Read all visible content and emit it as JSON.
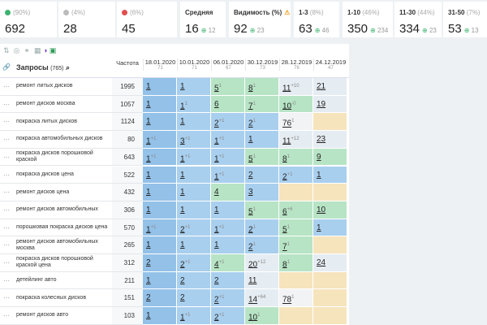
{
  "stats": [
    {
      "share": "(90%)",
      "value": 692
    },
    {
      "share": "(4%)",
      "value": 28
    },
    {
      "share": "(6%)",
      "value": 45
    }
  ],
  "metrics": [
    {
      "label": "Средняя",
      "value": 16,
      "delta": 12
    },
    {
      "label": "Видимость (%)",
      "value": 92,
      "delta": 23
    },
    {
      "label": "1-3",
      "share": "(8%)",
      "value": 63,
      "delta": 46
    },
    {
      "label": "1-10",
      "share": "(46%)",
      "value": 350,
      "delta": 234
    },
    {
      "label": "11-30",
      "share": "(44%)",
      "value": 334,
      "delta": 23
    },
    {
      "label": "31-50",
      "share": "(7%)",
      "value": 53,
      "delta": 13
    }
  ],
  "table": {
    "query_header": "Запросы",
    "query_count": "(765)",
    "freq_header": "Частота",
    "dates": [
      "18.01.2020",
      "10.01.2020",
      "06.01.2020",
      "30.12.2019",
      "28.12.2019",
      "24.12.2019"
    ],
    "date_counts": [
      71,
      71,
      67,
      73,
      76,
      47
    ],
    "rows": [
      {
        "query": "ремонт литых дисков",
        "freq": 1995,
        "positions": [
          1,
          1,
          5,
          8,
          11,
          21
        ],
        "changes": [
          null,
          null,
          "1",
          "1",
          "+10",
          null
        ]
      },
      {
        "query": "ремонт дисков москва",
        "freq": 1057,
        "positions": [
          1,
          1,
          6,
          7,
          10,
          19
        ],
        "changes": [
          null,
          "1",
          null,
          "1",
          "-0",
          null
        ]
      },
      {
        "query": "покраска литых дисков",
        "freq": 1124,
        "positions": [
          1,
          1,
          2,
          2,
          76,
          null
        ],
        "changes": [
          null,
          null,
          "+1",
          "1",
          "1",
          null
        ]
      },
      {
        "query": "покраска автомобильных дисков",
        "freq": 80,
        "positions": [
          1,
          3,
          1,
          1,
          11,
          23
        ],
        "changes": [
          "+1",
          "+1",
          "+1",
          null,
          "+12",
          null
        ]
      },
      {
        "query": "покраска дисков порошковой краской",
        "freq": 643,
        "positions": [
          1,
          1,
          1,
          5,
          8,
          9
        ],
        "changes": [
          "+1",
          "+1",
          "+1",
          "1",
          "1",
          null
        ]
      },
      {
        "query": "покраска дисков цена",
        "freq": 522,
        "positions": [
          1,
          1,
          1,
          2,
          2,
          1
        ],
        "changes": [
          null,
          null,
          "+1",
          null,
          "+1",
          null
        ]
      },
      {
        "query": "ремонт дисков цена",
        "freq": 432,
        "positions": [
          1,
          1,
          4,
          3,
          null,
          null
        ],
        "changes": [
          null,
          null,
          null,
          null,
          null,
          null
        ]
      },
      {
        "query": "ремонт дисков автомобильных",
        "freq": 306,
        "positions": [
          1,
          1,
          1,
          5,
          6,
          10
        ],
        "changes": [
          null,
          null,
          null,
          "1",
          "+6",
          null
        ]
      },
      {
        "query": "порошковая покраска дисков цена",
        "freq": 570,
        "positions": [
          1,
          2,
          1,
          2,
          5,
          1
        ],
        "changes": [
          "+1",
          "+1",
          "+1",
          "1",
          "1",
          null
        ]
      },
      {
        "query": "ремонт дисков автомобильных москва",
        "freq": 265,
        "positions": [
          1,
          1,
          1,
          2,
          7,
          null
        ],
        "changes": [
          null,
          null,
          null,
          "1",
          "1",
          null
        ]
      },
      {
        "query": "покраска дисков порошковой краской цена",
        "freq": 312,
        "positions": [
          2,
          2,
          4,
          20,
          8,
          24
        ],
        "changes": [
          null,
          "+1",
          "+1",
          "+12",
          "1",
          null
        ]
      },
      {
        "query": "детейлинг авто",
        "freq": 211,
        "positions": [
          1,
          2,
          2,
          11,
          null,
          null
        ],
        "changes": [
          null,
          null,
          null,
          null,
          null,
          null
        ]
      },
      {
        "query": "покраска колесных дисков",
        "freq": 151,
        "positions": [
          2,
          2,
          2,
          14,
          78,
          null
        ],
        "changes": [
          null,
          null,
          "+1",
          "+64",
          "1",
          null
        ]
      },
      {
        "query": "ремонт дисков авто",
        "freq": 103,
        "positions": [
          1,
          1,
          2,
          10,
          null,
          null
        ],
        "changes": [
          null,
          "+1",
          "+1",
          "1",
          null,
          null
        ]
      }
    ]
  }
}
